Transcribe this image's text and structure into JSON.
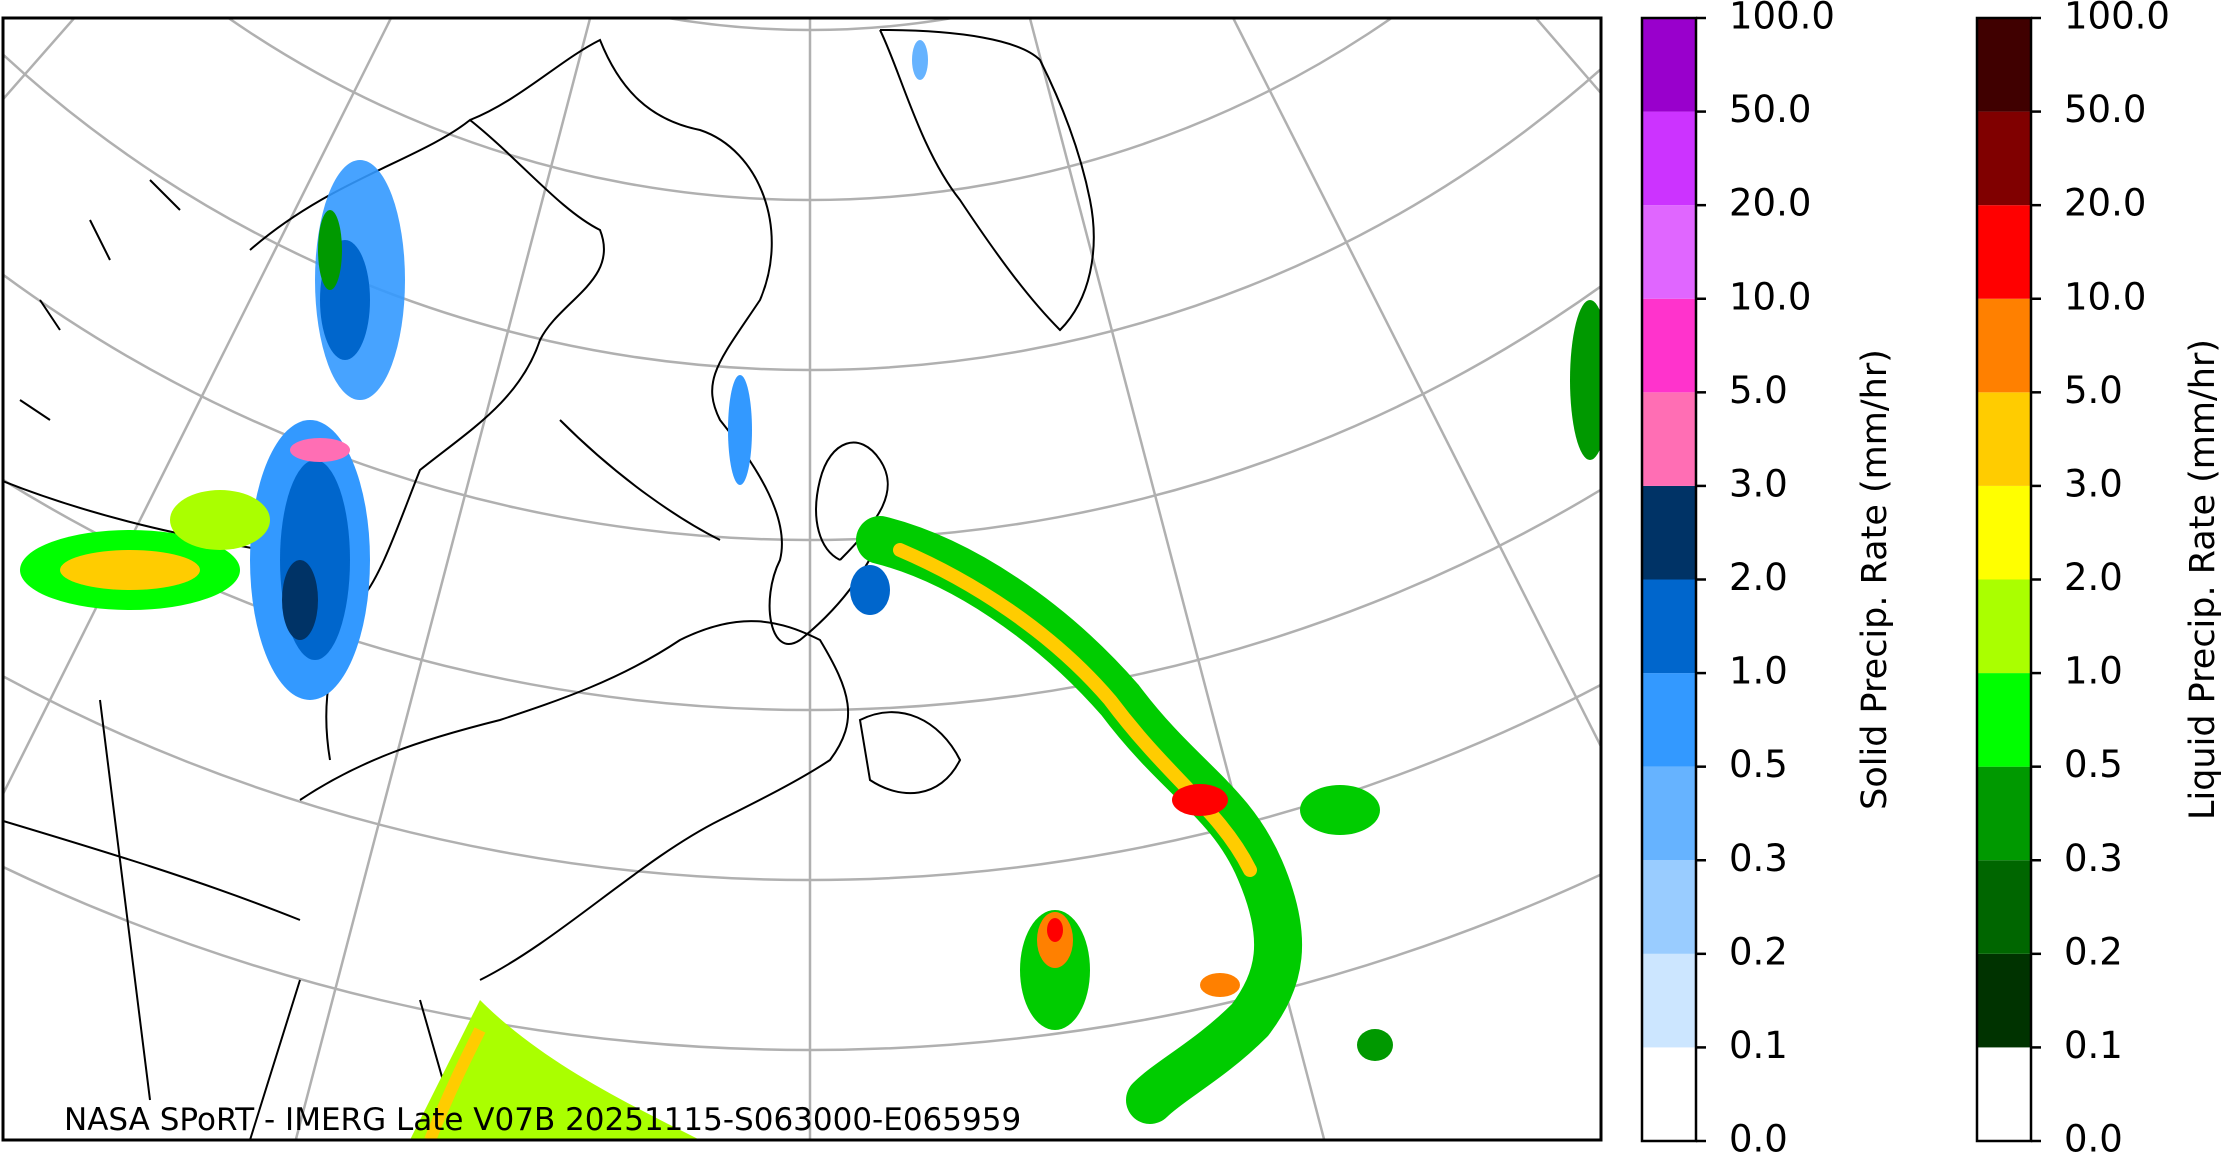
{
  "map": {
    "caption": "NASA SPoRT - IMERG Late V07B 20251115-S063000-E065959"
  },
  "colorbars": [
    {
      "label": "Solid Precip. Rate (mm/hr)",
      "ticks": [
        {
          "value": 0,
          "label": "0.0"
        },
        {
          "value": 0.1,
          "label": "0.1"
        },
        {
          "value": 0.2,
          "label": "0.2"
        },
        {
          "value": 0.3,
          "label": "0.3"
        },
        {
          "value": 0.5,
          "label": "0.5"
        },
        {
          "value": 1,
          "label": "1.0"
        },
        {
          "value": 2,
          "label": "2.0"
        },
        {
          "value": 3,
          "label": "3.0"
        },
        {
          "value": 5,
          "label": "5.0"
        },
        {
          "value": 10,
          "label": "10.0"
        },
        {
          "value": 20,
          "label": "20.0"
        },
        {
          "value": 50,
          "label": "50.0"
        },
        {
          "value": 100,
          "label": "100.0"
        }
      ],
      "colors": [
        "#ffffff",
        "#cce6ff",
        "#99ccff",
        "#66b3ff",
        "#3399ff",
        "#0066cc",
        "#003366",
        "#ff6eb4",
        "#ff33cc",
        "#e066ff",
        "#cc33ff",
        "#9900cc"
      ]
    },
    {
      "label": "Liquid Precip. Rate (mm/hr)",
      "ticks": [
        {
          "value": 0,
          "label": "0.0"
        },
        {
          "value": 0.1,
          "label": "0.1"
        },
        {
          "value": 0.2,
          "label": "0.2"
        },
        {
          "value": 0.3,
          "label": "0.3"
        },
        {
          "value": 0.5,
          "label": "0.5"
        },
        {
          "value": 1,
          "label": "1.0"
        },
        {
          "value": 2,
          "label": "2.0"
        },
        {
          "value": 3,
          "label": "3.0"
        },
        {
          "value": 5,
          "label": "5.0"
        },
        {
          "value": 10,
          "label": "10.0"
        },
        {
          "value": 20,
          "label": "20.0"
        },
        {
          "value": 50,
          "label": "50.0"
        },
        {
          "value": 100,
          "label": "100.0"
        }
      ],
      "colors": [
        "#ffffff",
        "#003300",
        "#006600",
        "#009900",
        "#00ff00",
        "#aaff00",
        "#ffff00",
        "#ffcc00",
        "#ff8000",
        "#ff0000",
        "#800000",
        "#400000"
      ]
    }
  ]
}
